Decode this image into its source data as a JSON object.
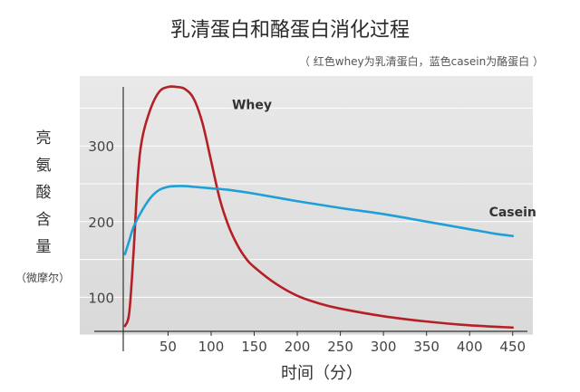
{
  "chart_data": {
    "type": "line",
    "title": "乳清蛋白和酪蛋白消化过程",
    "subtitle": "（ 红色whey为乳清蛋白，蓝色casein为酪蛋白 ）",
    "xlabel": "时间（分）",
    "ylabel": "亮氨酸含量",
    "ylabel_unit": "（微摩尔）",
    "xlim": [
      -2,
      465
    ],
    "ylim": [
      55,
      390
    ],
    "x_ticks": [
      50,
      100,
      150,
      200,
      250,
      300,
      350,
      400,
      450
    ],
    "y_ticks": [
      100,
      200,
      300
    ],
    "grid": "horizontal",
    "background": "#e4e4e4",
    "series": [
      {
        "name": "Whey",
        "color": "#b52025",
        "x": [
          0,
          5,
          10,
          15,
          20,
          30,
          40,
          50,
          60,
          70,
          80,
          90,
          100,
          110,
          120,
          130,
          140,
          150,
          175,
          200,
          225,
          250,
          300,
          350,
          400,
          450
        ],
        "y": [
          62,
          80,
          160,
          260,
          310,
          350,
          372,
          378,
          378,
          375,
          362,
          330,
          280,
          230,
          195,
          170,
          152,
          140,
          118,
          102,
          92,
          85,
          75,
          68,
          63,
          60
        ]
      },
      {
        "name": "Casein",
        "color": "#1e9fd8",
        "x": [
          0,
          5,
          10,
          20,
          30,
          40,
          50,
          60,
          70,
          80,
          100,
          120,
          150,
          200,
          250,
          300,
          350,
          400,
          430,
          450
        ],
        "y": [
          157,
          175,
          193,
          215,
          232,
          242,
          246,
          247,
          247,
          246,
          244,
          242,
          237,
          227,
          218,
          210,
          200,
          190,
          184,
          181
        ]
      }
    ]
  }
}
